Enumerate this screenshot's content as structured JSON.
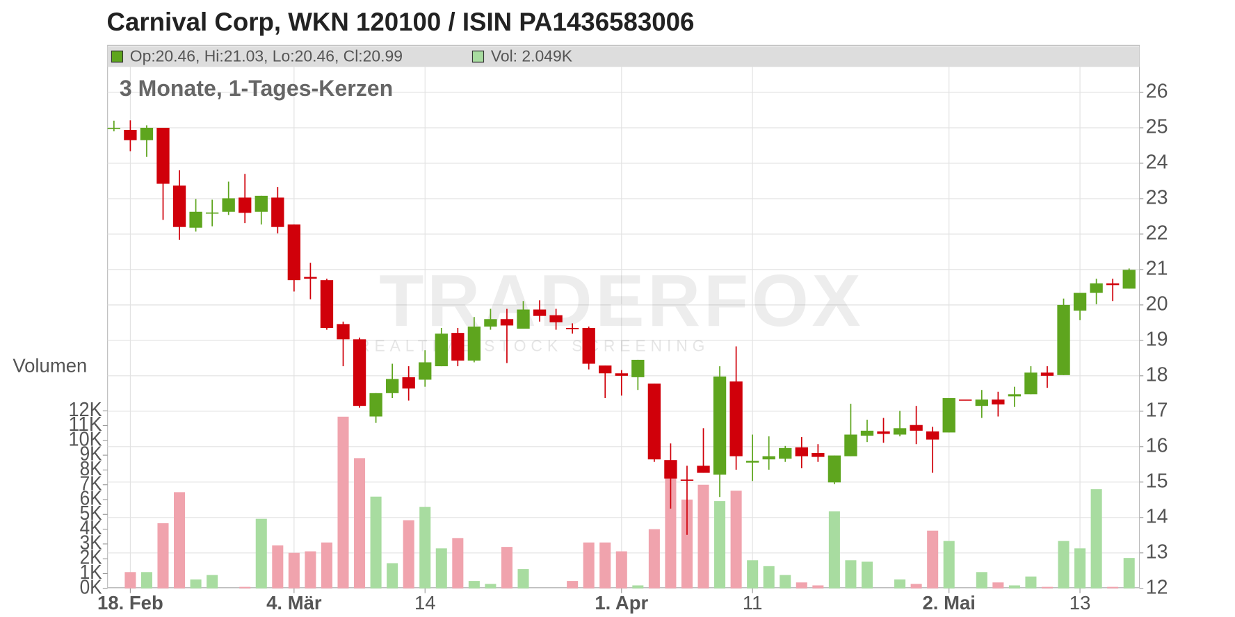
{
  "chart_data": {
    "type": "candlestick",
    "title": "Carnival Corp, WKN 120100 / ISIN PA1436583006",
    "subtitle": "3 Monate, 1-Tages-Kerzen",
    "legend": {
      "ohlc": "Op:20.46, Hi:21.03, Lo:20.46, Cl:20.99",
      "volume": "Vol: 2.049K"
    },
    "watermark": "TRADERFOX",
    "watermark_sub": "REALTIME STOCK SCREENING",
    "volume_axis_label": "Volumen",
    "up_color": "#5ea51e",
    "down_color": "#d0000a",
    "volume_up_color": "#a8dca0",
    "volume_down_color": "#f0a3ad",
    "grid": true,
    "categories": [
      null,
      "18. Feb",
      null,
      null,
      null,
      null,
      null,
      null,
      null,
      null,
      null,
      "4. Mär",
      null,
      null,
      null,
      null,
      null,
      null,
      null,
      "14",
      null,
      null,
      null,
      null,
      null,
      null,
      null,
      null,
      null,
      null,
      null,
      "1. Apr",
      null,
      null,
      null,
      null,
      null,
      null,
      null,
      "11",
      null,
      null,
      null,
      null,
      null,
      null,
      null,
      null,
      null,
      null,
      null,
      "2. Mai",
      null,
      null,
      null,
      null,
      null,
      null,
      null,
      "13",
      null,
      null,
      null
    ],
    "open": [
      24.98,
      24.94,
      24.65,
      25.0,
      23.37,
      22.18,
      22.6,
      22.63,
      23.03,
      22.63,
      23.03,
      22.27,
      20.79,
      20.7,
      19.46,
      19.03,
      16.85,
      17.51,
      17.96,
      17.89,
      18.27,
      19.21,
      18.43,
      19.39,
      19.6,
      19.33,
      19.87,
      19.71,
      19.35,
      19.35,
      18.29,
      18.07,
      17.96,
      17.78,
      15.62,
      15.07,
      15.46,
      15.21,
      17.84,
      15.55,
      15.64,
      15.66,
      15.98,
      15.82,
      14.99,
      15.73,
      16.31,
      16.43,
      16.34,
      16.61,
      16.43,
      16.4,
      17.33,
      17.15,
      17.33,
      17.42,
      17.48,
      18.09,
      18.02,
      19.84,
      20.34,
      20.61,
      20.46
    ],
    "high": [
      25.2,
      25.21,
      25.07,
      25.0,
      23.8,
      22.99,
      22.97,
      23.48,
      23.7,
      23.08,
      23.33,
      22.27,
      21.19,
      20.74,
      19.53,
      19.08,
      17.51,
      18.34,
      18.27,
      18.72,
      19.35,
      19.35,
      19.66,
      19.89,
      19.89,
      20.11,
      20.13,
      19.89,
      19.48,
      19.39,
      18.29,
      18.16,
      18.45,
      17.78,
      16.09,
      15.46,
      16.52,
      18.27,
      18.83,
      16.34,
      16.29,
      16.02,
      16.27,
      16.07,
      15.75,
      17.21,
      16.76,
      16.81,
      17.01,
      17.15,
      16.56,
      17.37,
      17.33,
      17.6,
      17.55,
      17.69,
      18.27,
      18.27,
      20.18,
      20.34,
      20.74,
      20.74,
      21.03
    ],
    "low": [
      24.9,
      24.34,
      24.18,
      22.4,
      21.84,
      22.07,
      22.22,
      22.54,
      22.31,
      22.27,
      22.02,
      20.38,
      20.16,
      19.3,
      18.27,
      17.1,
      16.67,
      17.37,
      17.3,
      17.69,
      18.27,
      18.27,
      18.38,
      19.3,
      18.36,
      19.33,
      19.53,
      19.3,
      19.19,
      18.18,
      17.37,
      17.44,
      17.6,
      15.57,
      14.25,
      13.51,
      15.26,
      14.58,
      15.35,
      15.03,
      15.35,
      15.57,
      15.39,
      15.57,
      14.94,
      15.73,
      16.13,
      16.11,
      16.29,
      16.07,
      15.26,
      16.4,
      17.3,
      16.81,
      16.85,
      17.12,
      17.48,
      17.66,
      18.02,
      19.57,
      20.02,
      20.11,
      20.46
    ],
    "close": [
      25.0,
      24.65,
      25.0,
      23.42,
      22.2,
      22.63,
      22.61,
      23.01,
      22.6,
      23.08,
      22.2,
      20.7,
      20.74,
      19.35,
      19.03,
      17.15,
      17.51,
      17.91,
      17.64,
      18.38,
      19.19,
      18.43,
      19.39,
      19.6,
      19.42,
      19.87,
      19.69,
      19.51,
      19.33,
      18.34,
      18.07,
      18.0,
      18.45,
      15.64,
      15.1,
      15.05,
      15.26,
      17.98,
      15.73,
      15.6,
      15.73,
      15.96,
      15.73,
      15.71,
      15.75,
      16.34,
      16.45,
      16.36,
      16.52,
      16.45,
      16.2,
      17.37,
      17.3,
      17.33,
      17.19,
      17.48,
      18.09,
      18.0,
      20.0,
      20.34,
      20.61,
      20.56,
      20.99
    ],
    "volume": [
      0,
      1.1,
      1.1,
      4.4,
      6.5,
      0.6,
      0.9,
      0,
      0.1,
      4.7,
      2.9,
      2.4,
      2.5,
      3.1,
      11.6,
      8.8,
      6.2,
      1.7,
      4.6,
      5.5,
      2.7,
      3.4,
      0.5,
      0.3,
      2.8,
      1.3,
      0,
      0,
      0.5,
      3.1,
      3.1,
      2.5,
      0.2,
      4.0,
      7.5,
      6.0,
      7.0,
      5.9,
      6.6,
      1.9,
      1.5,
      0.9,
      0.4,
      0.2,
      5.2,
      1.9,
      1.8,
      0,
      0.6,
      0.3,
      3.9,
      3.2,
      0,
      1.1,
      0.4,
      0.2,
      0.8,
      0.1,
      3.2,
      2.7,
      6.7,
      0.1,
      2.049
    ],
    "ylim": [
      12,
      26.72
    ],
    "yticks": [
      12,
      13,
      14,
      15,
      16,
      17,
      18,
      19,
      20,
      21,
      22,
      23,
      24,
      25,
      26
    ],
    "volume_ylim": [
      0,
      12
    ],
    "volume_ticks": [
      {
        "value": 0,
        "label": "0K"
      },
      {
        "value": 1,
        "label": "1K"
      },
      {
        "value": 2,
        "label": "2K"
      },
      {
        "value": 3,
        "label": "3K"
      },
      {
        "value": 4,
        "label": "4K"
      },
      {
        "value": 5,
        "label": "5K"
      },
      {
        "value": 6,
        "label": "6K"
      },
      {
        "value": 7,
        "label": "7K"
      },
      {
        "value": 8,
        "label": "8K"
      },
      {
        "value": 9,
        "label": "9K"
      },
      {
        "value": 10,
        "label": "10K"
      },
      {
        "value": 11,
        "label": "11K"
      },
      {
        "value": 12,
        "label": "12K"
      }
    ]
  }
}
